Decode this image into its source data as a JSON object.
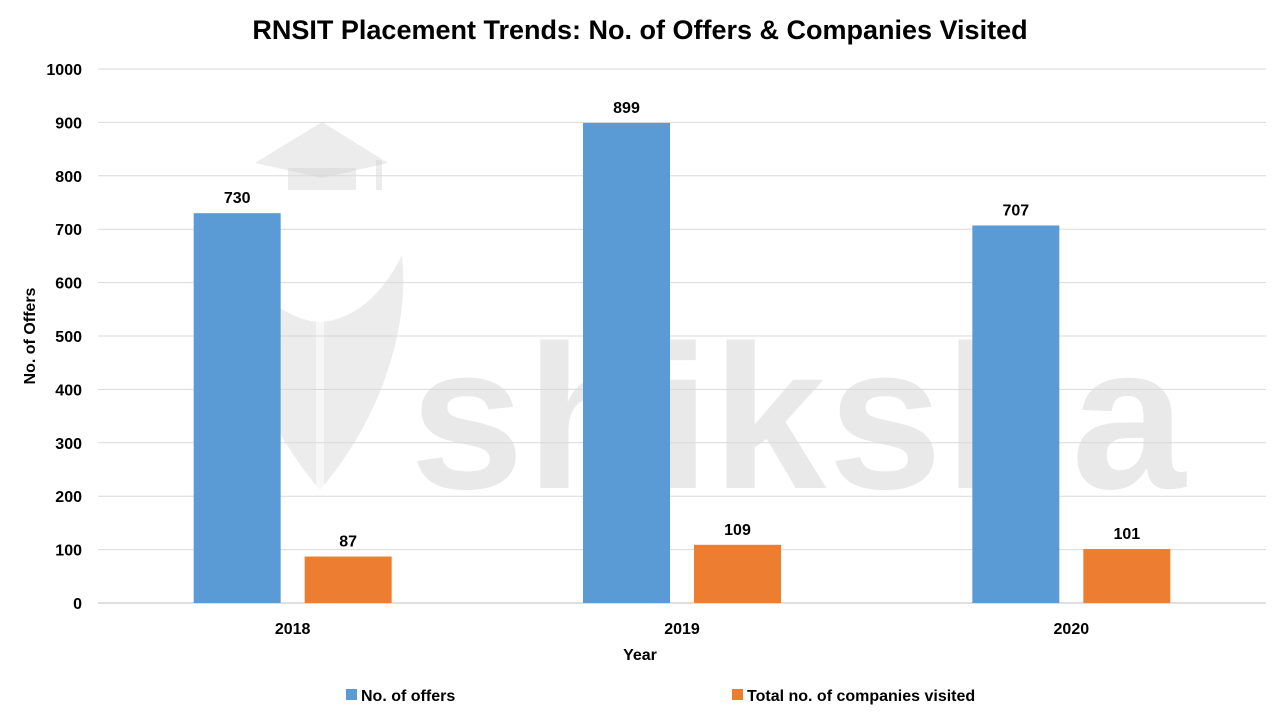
{
  "chart_data": {
    "type": "bar",
    "title": "RNSIT Placement Trends: No. of Offers & Companies Visited",
    "xlabel": "Year",
    "ylabel": "No. of Offers",
    "categories": [
      "2018",
      "2019",
      "2020"
    ],
    "series": [
      {
        "name": "No. of offers",
        "values": [
          730,
          899,
          707
        ],
        "color": "#5b9bd5"
      },
      {
        "name": "Total no. of companies visited",
        "values": [
          87,
          109,
          101
        ],
        "color": "#ed7d31"
      }
    ],
    "ylim": [
      0,
      1000
    ],
    "yticks": [
      0,
      100,
      200,
      300,
      400,
      500,
      600,
      700,
      800,
      900,
      1000
    ],
    "grid": true,
    "legend_position": "bottom",
    "data_labels": true
  },
  "watermark": {
    "text": "shiksha",
    "icon": "graduation-cap-logo-icon"
  }
}
